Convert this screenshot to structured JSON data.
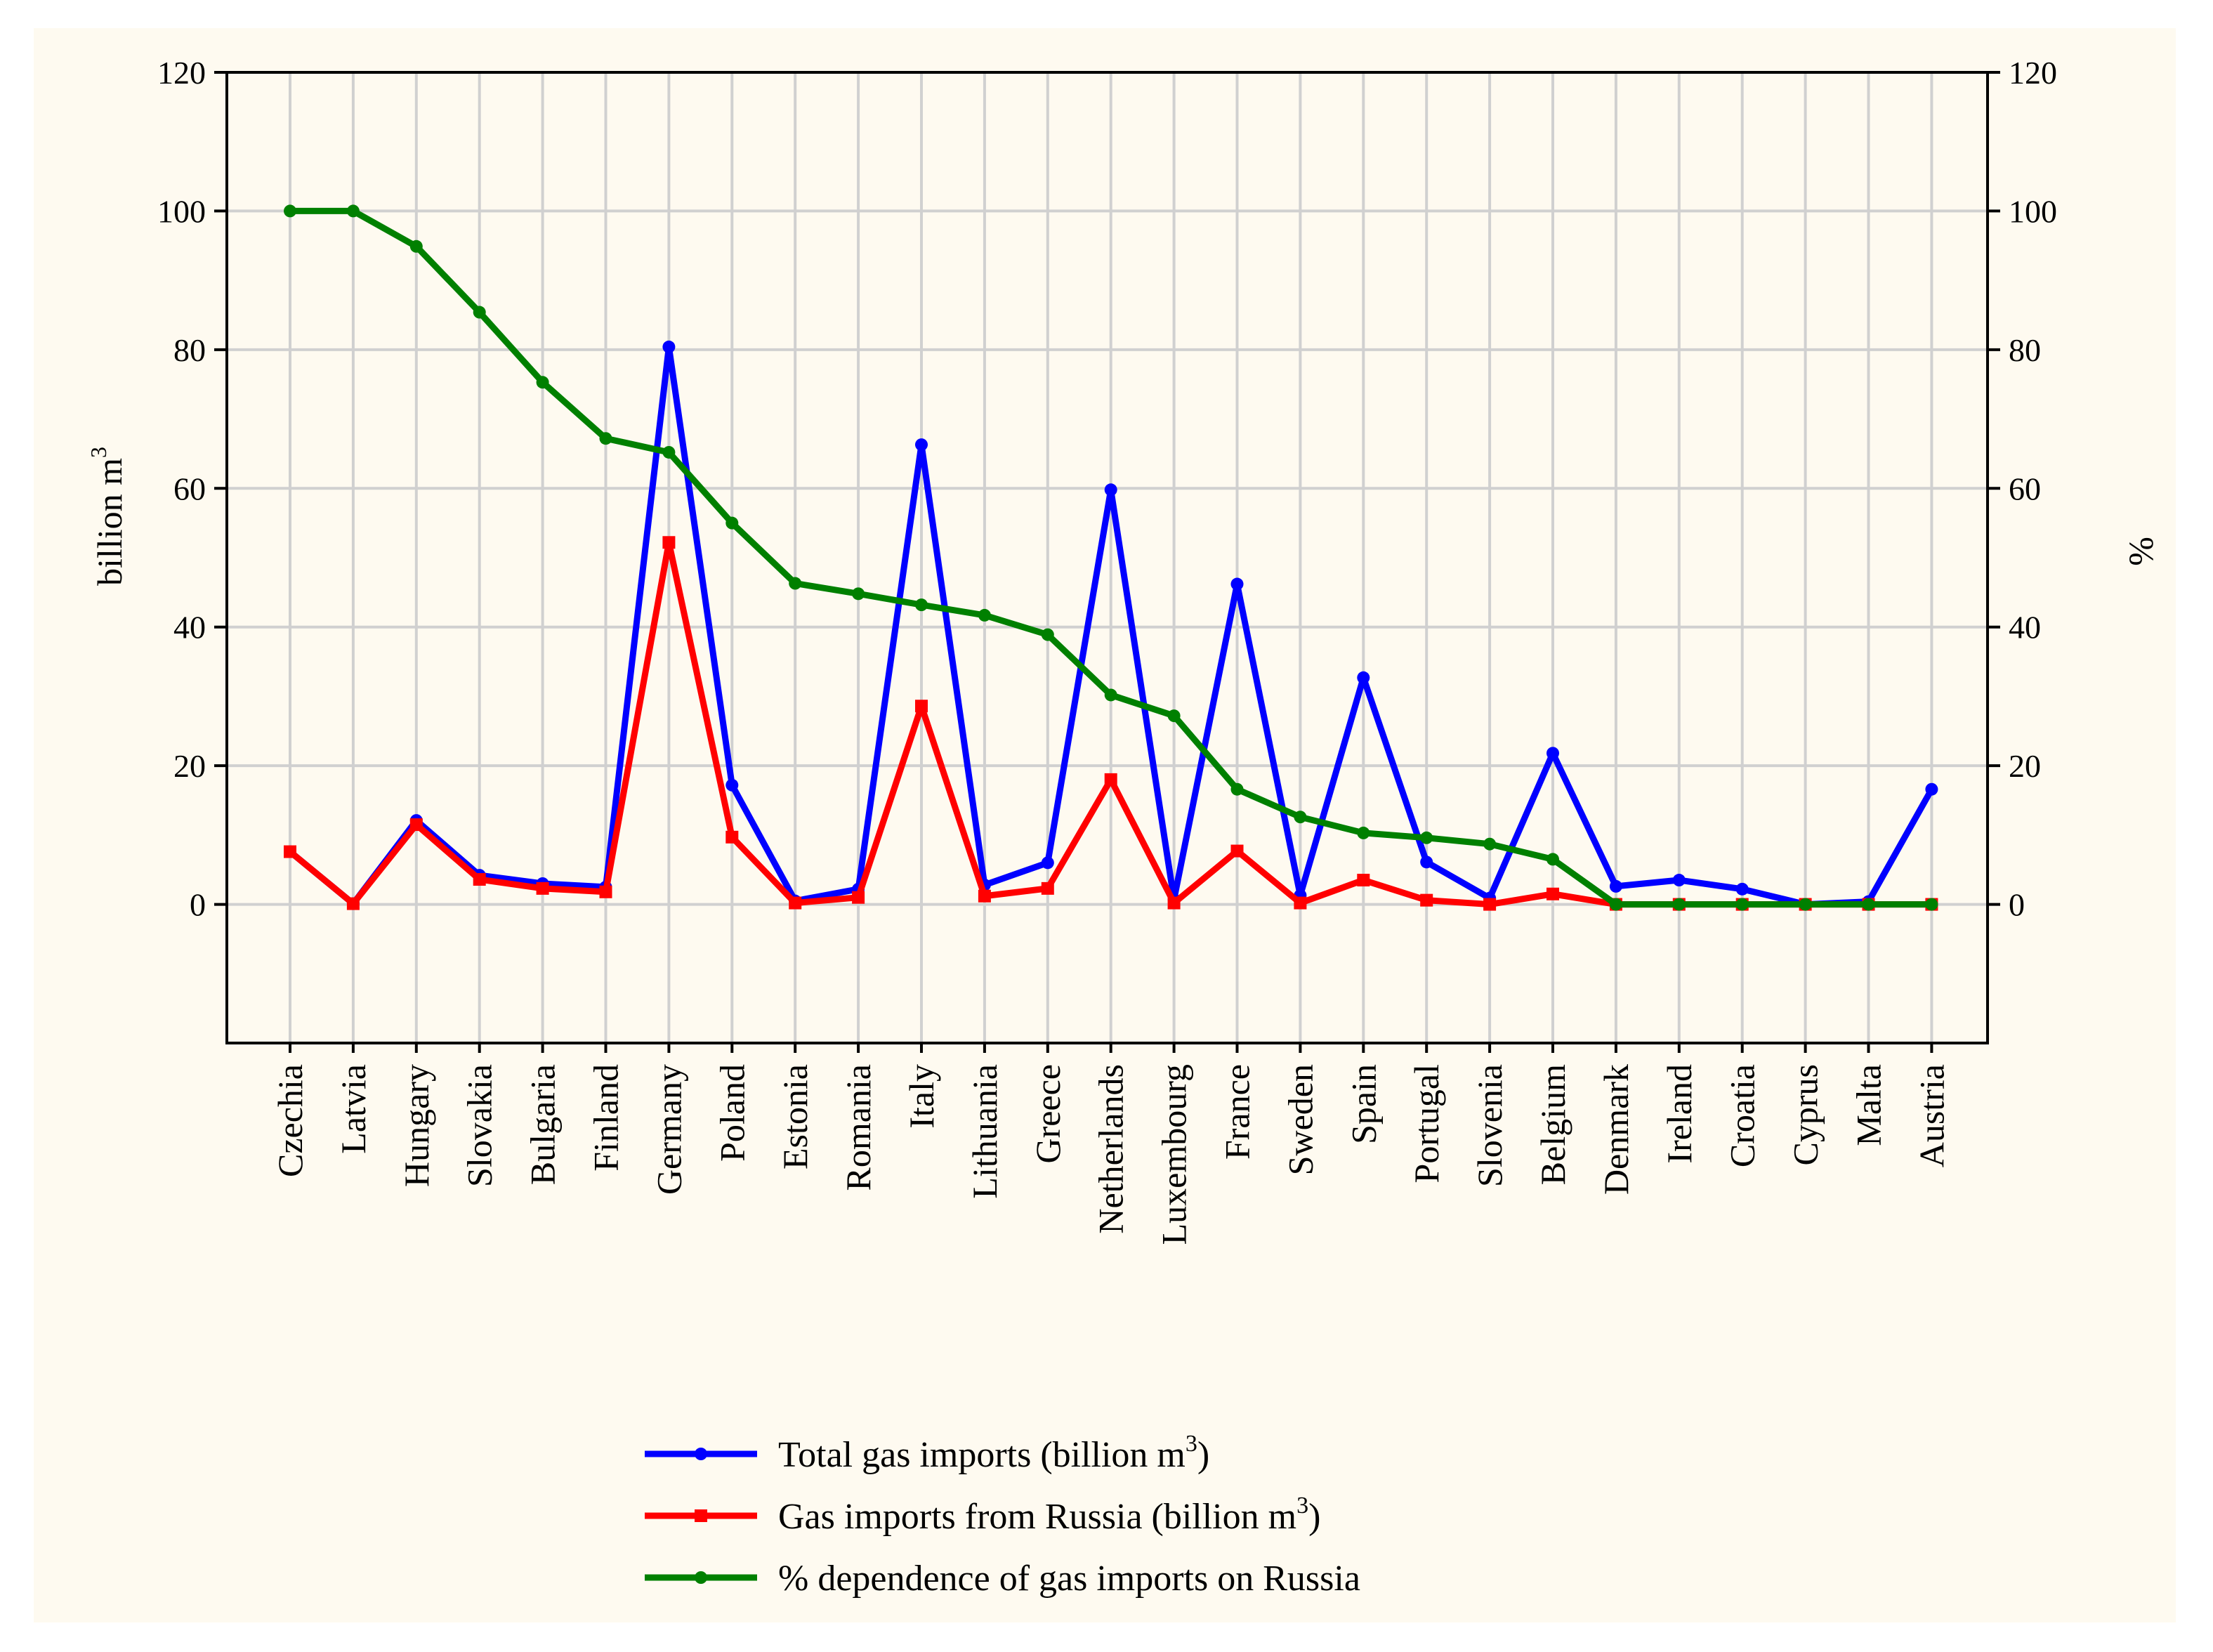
{
  "chart_data": {
    "type": "line",
    "categories": [
      "Czechia",
      "Latvia",
      "Hungary",
      "Slovakia",
      "Bulgaria",
      "Finland",
      "Germany",
      "Poland",
      "Estonia",
      "Romania",
      "Italy",
      "Lithuania",
      "Greece",
      "Netherlands",
      "Luxembourg",
      "France",
      "Sweden",
      "Spain",
      "Portugal",
      "Slovenia",
      "Belgium",
      "Denmark",
      "Ireland",
      "Croatia",
      "Cyprus",
      "Malta",
      "Austria"
    ],
    "series": [
      {
        "name": "Total gas imports (billion m",
        "superscript": "3",
        "name_suffix": ")",
        "axis": "left",
        "color": "#0000ff",
        "marker": "circle",
        "values": [
          7.6,
          0.1,
          12.1,
          4.2,
          3.0,
          2.5,
          80.4,
          17.2,
          0.5,
          2.2,
          66.3,
          2.8,
          6.0,
          59.8,
          0.7,
          46.2,
          1.3,
          32.7,
          6.1,
          0.9,
          21.8,
          2.6,
          3.5,
          2.2,
          0.0,
          0.4,
          16.6
        ]
      },
      {
        "name": "Gas imports from Russia (billion m",
        "superscript": "3",
        "name_suffix": ")",
        "axis": "left",
        "color": "#ff0000",
        "marker": "square",
        "values": [
          7.6,
          0.1,
          11.5,
          3.6,
          2.3,
          1.8,
          52.2,
          9.7,
          0.2,
          1.0,
          28.6,
          1.2,
          2.3,
          18.0,
          0.2,
          7.7,
          0.2,
          3.5,
          0.6,
          0.0,
          1.5,
          0.0,
          0.0,
          0.0,
          0.0,
          0.0,
          0.0
        ]
      },
      {
        "name": "% dependence of gas imports on Russia",
        "superscript": "",
        "name_suffix": "",
        "axis": "right",
        "color": "#008000",
        "marker": "circle",
        "values": [
          100,
          100,
          94.9,
          85.4,
          75.3,
          67.2,
          65.2,
          55.0,
          46.3,
          44.8,
          43.2,
          41.7,
          38.9,
          30.2,
          27.2,
          16.6,
          12.6,
          10.3,
          9.6,
          8.7,
          6.5,
          0,
          0,
          0,
          0,
          0,
          0
        ]
      }
    ],
    "ylabel": "billion m",
    "ylabel_sup": "3",
    "y2label": "%",
    "ylim": [
      -20,
      120
    ],
    "y2lim": [
      -20,
      120
    ],
    "yticks": [
      0,
      20,
      40,
      60,
      80,
      100,
      120
    ],
    "y2ticks": [
      0,
      20,
      40,
      60,
      80,
      100,
      120
    ],
    "grid": true,
    "legend_position": "bottom-center"
  }
}
